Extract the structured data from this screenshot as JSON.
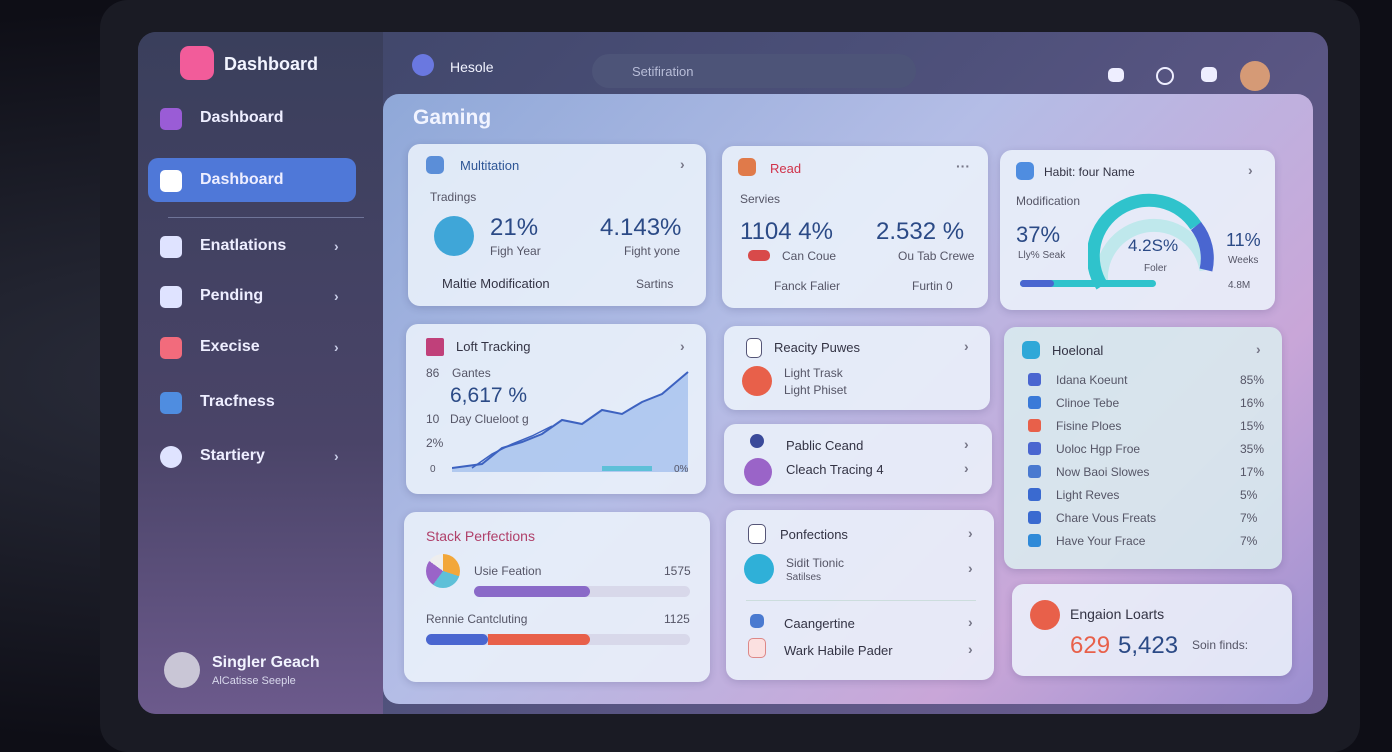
{
  "topbar": {
    "logo": "Dashboard",
    "user": "Hesole",
    "search": "Setifiration"
  },
  "sidebar": {
    "items": [
      "Dashboard",
      "Dashboard",
      "Enatlations",
      "Pending",
      "Execise",
      "Tracfness",
      "Startiery"
    ],
    "profile": {
      "name": "Singler Geach",
      "role": "AlCatisse Seeple"
    }
  },
  "main": {
    "title": "Gaming",
    "multitation": {
      "title": "Multitation",
      "subtitle": "Tradings",
      "stat1": "21%",
      "stat1_label": "Figh Year",
      "stat2": "4.143%",
      "stat2_label": "Fight yone",
      "footer": "Maltie Modification",
      "link": "Sartins"
    },
    "read": {
      "title": "Read",
      "subtitle": "Servies",
      "stat1": "1104 4%",
      "stat1_label": "Can Coue",
      "stat2": "2.532 %",
      "stat2_label": "Ou Tab Crewe",
      "footer": "Fanck Falier",
      "link": "Furtin 0"
    },
    "habit": {
      "title": "Habit: four Name",
      "subtitle": "Modification",
      "stat1": "37%",
      "stat1_label": "Lly% Seak",
      "gauge": "4.2S%",
      "gauge_label": "Foler",
      "stat2": "11%",
      "stat2_label": "Weeks",
      "extra": "4.8M"
    },
    "tracking": {
      "title": "Loft Tracking",
      "row1_num": "86",
      "row1_label": "Gantes",
      "value": "6,617 %",
      "row2_num": "10",
      "row2_label": "Day Clueloot g",
      "row3_num": "2%",
      "axis_start": "0",
      "axis_end": "0%"
    },
    "reacity": {
      "title": "Reacity Puwes",
      "line1": "Light Trask",
      "line2": "Light Phiset"
    },
    "pablic": {
      "line1": "Pablic Ceand",
      "line2": "Cleach Tracing 4"
    },
    "hoelonal": {
      "title": "Hoelonal",
      "items": [
        {
          "name": "Idana Koeunt",
          "value": "85%"
        },
        {
          "name": "Clinoe Tebe",
          "value": "16%"
        },
        {
          "name": "Fisine Ploes",
          "value": "15%"
        },
        {
          "name": "Uoloc Hgp Froe",
          "value": "35%"
        },
        {
          "name": "Now Baoi Slowes",
          "value": "17%"
        },
        {
          "name": "Light Reves",
          "value": "5%"
        },
        {
          "name": "Chare Vous Freats",
          "value": "7%"
        },
        {
          "name": "Have Your Frace",
          "value": "7%"
        }
      ]
    },
    "stack": {
      "title": "Stack Perfections",
      "row1": "Usie Feation",
      "row1_value": "1575",
      "row2": "Rennie Cantcluting",
      "row2_value": "1125"
    },
    "ponfections": {
      "title": "Ponfections",
      "line1": "Sidit Tionic",
      "line1_sub": "Satilses",
      "line2": "Caangertine",
      "line3": "Wark Habile Pader"
    },
    "engaion": {
      "title": "Engaion Loarts",
      "value1": "629",
      "value2": "5,423",
      "note": "Soin finds:"
    }
  }
}
